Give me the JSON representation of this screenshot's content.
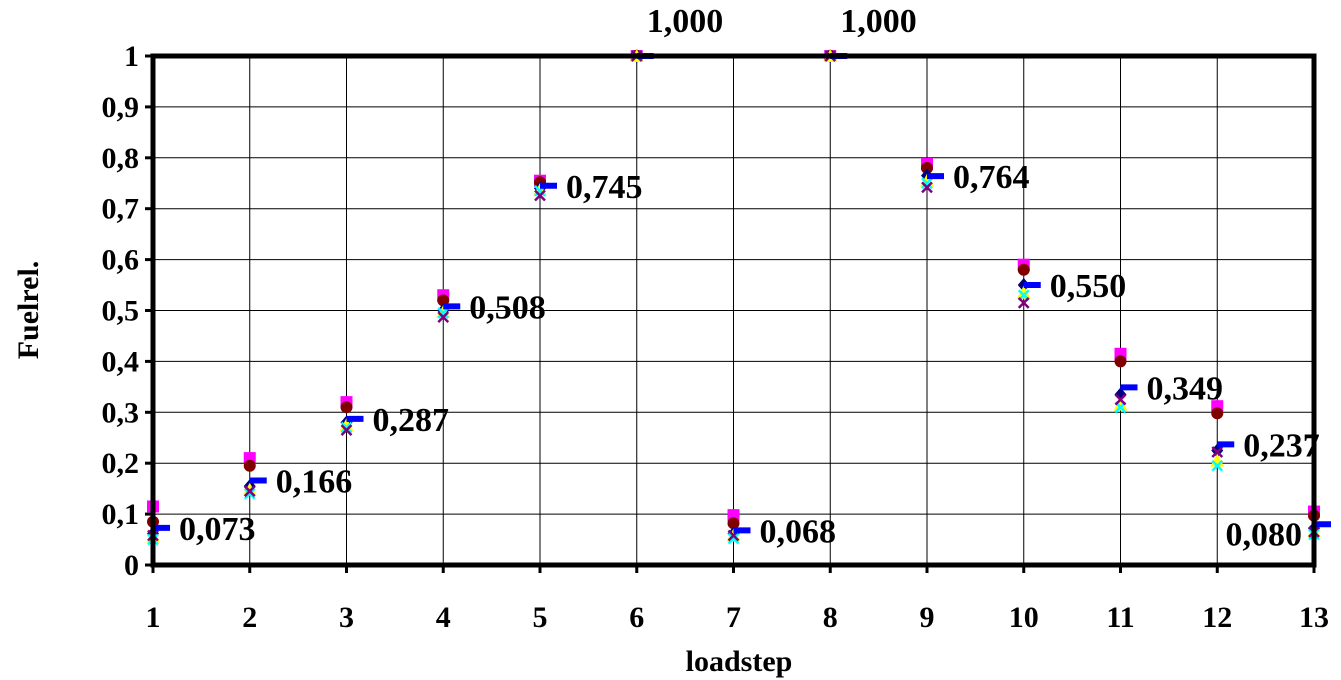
{
  "chart_data": {
    "type": "scatter",
    "xlabel": "loadstep",
    "ylabel": "Fuelrel.",
    "x": [
      1,
      2,
      3,
      4,
      5,
      6,
      7,
      8,
      9,
      10,
      11,
      12,
      13
    ],
    "xlim": [
      1,
      13
    ],
    "ylim": [
      0,
      1
    ],
    "yticks": [
      "0",
      "0,1",
      "0,2",
      "0,3",
      "0,4",
      "0,5",
      "0,6",
      "0,7",
      "0,8",
      "0,9",
      "1"
    ],
    "xticks": [
      "1",
      "2",
      "3",
      "4",
      "5",
      "6",
      "7",
      "8",
      "9",
      "10",
      "11",
      "12",
      "13"
    ],
    "grid": true,
    "legend": "none",
    "series": [
      {
        "color": "#ff00ff",
        "marker": "square",
        "values": [
          0.115,
          0.21,
          0.32,
          0.53,
          0.755,
          1.0,
          0.098,
          1.0,
          0.788,
          0.59,
          0.415,
          0.312,
          0.105
        ]
      },
      {
        "color": "#800000",
        "marker": "circle",
        "values": [
          0.085,
          0.195,
          0.31,
          0.52,
          0.752,
          1.0,
          0.082,
          1.0,
          0.78,
          0.58,
          0.4,
          0.298,
          0.097
        ]
      },
      {
        "color": "#000080",
        "marker": "diamond",
        "values": [
          0.062,
          0.155,
          0.28,
          0.5,
          0.74,
          1.0,
          0.062,
          1.0,
          0.765,
          0.55,
          0.335,
          0.225,
          0.072
        ]
      },
      {
        "color": "#ffff00",
        "marker": "triangle",
        "values": [
          0.056,
          0.148,
          0.275,
          0.497,
          0.737,
          1.0,
          0.058,
          1.0,
          0.755,
          0.535,
          0.315,
          0.205,
          0.066
        ]
      },
      {
        "color": "#00ffff",
        "marker": "x",
        "values": [
          0.05,
          0.14,
          0.27,
          0.495,
          0.735,
          1.0,
          0.052,
          1.0,
          0.75,
          0.53,
          0.31,
          0.195,
          0.06
        ]
      },
      {
        "color": "#800080",
        "marker": "x",
        "values": [
          0.058,
          0.145,
          0.265,
          0.487,
          0.726,
          1.0,
          0.058,
          1.0,
          0.742,
          0.515,
          0.325,
          0.222,
          0.065
        ]
      },
      {
        "color": "#0000ff",
        "marker": "dash",
        "values": [
          0.073,
          0.166,
          0.287,
          0.508,
          0.745,
          1.0,
          0.068,
          1.0,
          0.764,
          0.55,
          0.349,
          0.237,
          0.08
        ]
      }
    ],
    "data_labels": [
      "0,073",
      "0,166",
      "0,287",
      "0,508",
      "0,745",
      "1,000",
      "0,068",
      "1,000",
      "0,764",
      "0,550",
      "0,349",
      "0,237",
      "0,080"
    ]
  }
}
